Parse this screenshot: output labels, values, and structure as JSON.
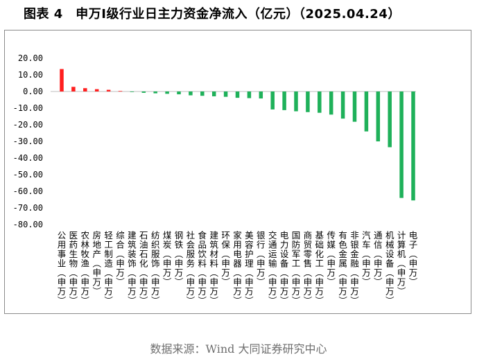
{
  "title": "图表 4　申万Ⅰ级行业日主力资金净流入（亿元）（2025.04.24）",
  "source": "数据来源：Wind 大同证券研究中心",
  "colors": {
    "positive": "#ff1f1f",
    "negative": "#1fb15a",
    "axis": "#bfbfbf"
  },
  "chart_data": {
    "type": "bar",
    "ylim": [
      -80,
      20
    ],
    "ytick_step": 10,
    "ytick_labels": [
      "20.00",
      "10.00",
      "0.00",
      "-10.00",
      "-20.00",
      "-30.00",
      "-40.00",
      "-50.00",
      "-60.00",
      "-70.00",
      "-80.00"
    ],
    "grid": false,
    "categories": [
      "公用事业(申万)",
      "医药生物(申万)",
      "农林牧渔(申万)",
      "房地产(申万)",
      "轻工制造(申万)",
      "综合(申万)",
      "建筑装饰(申万)",
      "石油石化(申万)",
      "纺织服饰(申万)",
      "煤炭(申万)",
      "钢铁(申万)",
      "社会服务(申万)",
      "食品饮料(申万)",
      "建筑材料(申万)",
      "环保(申万)",
      "家用电器(申万)",
      "美容护理(申万)",
      "银行(申万)",
      "交通运输(申万)",
      "电力设备(申万)",
      "国防军工(申万)",
      "商贸零售(申万)",
      "基础化工(申万)",
      "传媒(申万)",
      "有色金属(申万)",
      "非银金融(申万)",
      "汽车(申万)",
      "通信(申万)",
      "机械设备(申万)",
      "计算机(申万)",
      "电子(申万)"
    ],
    "values": [
      13.5,
      2.8,
      2.0,
      1.4,
      1.0,
      0.3,
      -0.3,
      -0.8,
      -1.1,
      -1.4,
      -1.7,
      -2.3,
      -2.6,
      -2.9,
      -3.2,
      -3.8,
      -4.0,
      -4.2,
      -10.8,
      -11.2,
      -11.9,
      -12.4,
      -12.8,
      -13.9,
      -16.3,
      -18.2,
      -24.0,
      -30.0,
      -33.5,
      -64.0,
      -65.5
    ]
  }
}
